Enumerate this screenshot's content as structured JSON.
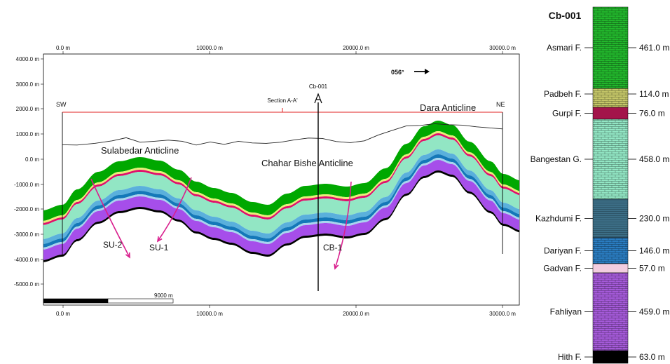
{
  "section": {
    "x_ticks_top": [
      "0.0 m",
      "10000.0 m",
      "20000.0 m",
      "30000.0 m"
    ],
    "x_ticks_bottom": [
      "0.0 m",
      "10000.0 m",
      "20000.0 m",
      "30000.0 m"
    ],
    "y_ticks": [
      "4000.0 m",
      "3000.0 m",
      "2000.0 m",
      "1000.0 m",
      "0.0 m",
      "-1000.0 m",
      "-2000.0 m",
      "-3000.0 m",
      "-4000.0 m",
      "-5000.0 m"
    ],
    "azimuth": "056°",
    "section_label": "Section A-A'",
    "sw_label": "SW",
    "ne_label": "NE",
    "well_label": "Cb-001",
    "scale_label": "9000 m",
    "anticlines": {
      "sulabedar": "Sulabedar Anticline",
      "chahar_bishe": "Chahar Bishe Anticline",
      "dara": "Dara Anticline"
    },
    "faults": {
      "su2": "SU-2",
      "su1": "SU-1",
      "cb1": "CB-1"
    },
    "colors": {
      "asmari": "#00a800",
      "padbeh": "#e8f078",
      "gurpi": "#e0106a",
      "bangestan": "#92e6c4",
      "kazhdumi": "#5ab0dc",
      "dariyan": "#1478b8",
      "gadvan": "#a8d4ee",
      "fahliyan": "#a64eea",
      "hith": "#000000",
      "fault": "#d9208e",
      "section_line": "#e02020"
    }
  },
  "column": {
    "title": "Cb-001",
    "formations": [
      {
        "name": "Asmari F.",
        "thickness": "461.0 m",
        "color": "#22b62c"
      },
      {
        "name": "Padbeh F.",
        "thickness": "114.0 m",
        "color": "#c4c668"
      },
      {
        "name": "Gurpi F.",
        "thickness": "76.0 m",
        "color": "#a3144a"
      },
      {
        "name": "Bangestan G.",
        "thickness": "458.0 m",
        "color": "#92e6c4"
      },
      {
        "name": "Kazhdumi F.",
        "thickness": "230.0 m",
        "color": "#3c6e86"
      },
      {
        "name": "Dariyan F.",
        "thickness": "146.0 m",
        "color": "#2a7cc0"
      },
      {
        "name": "Gadvan F.",
        "thickness": "57.0 m",
        "color": "#f2cde0"
      },
      {
        "name": "Fahliyan",
        "thickness": "459.0 m",
        "color": "#a45ad8"
      },
      {
        "name": "Hith F.",
        "thickness": "63.0 m",
        "color": "#000000"
      }
    ]
  }
}
